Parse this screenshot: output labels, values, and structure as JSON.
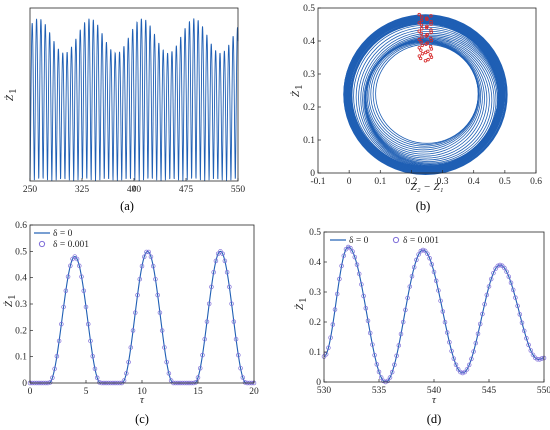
{
  "colors": {
    "line": "#1f5fb4",
    "marker": "#7f6fd9",
    "red": "#d62728",
    "axis": "#262626"
  },
  "chart_data": [
    {
      "panel": "(a)",
      "type": "line",
      "xlabel": "τ",
      "ylabel": "Ż1",
      "xlim": [
        250,
        550
      ],
      "ylim": [
        0,
        0.5
      ],
      "x_ticks": [
        "250",
        "325",
        "400",
        "475",
        "550"
      ],
      "y_ticks": [],
      "grid": false,
      "description_series": {
        "name": "",
        "oscillation_period": 6.3,
        "envelope_max_range": [
          0.37,
          0.47
        ],
        "minimum": 0.0,
        "envelope_min_slow_period": 75,
        "envelope_low_near": [
          275,
          350,
          430,
          505
        ]
      }
    },
    {
      "panel": "(b)",
      "type": "line",
      "xlabel": "Z2 − Z1",
      "ylabel": "Ż1",
      "xlim": [
        -0.1,
        0.6
      ],
      "ylim": [
        0,
        0.5
      ],
      "x_ticks": [
        "-0.1",
        "0",
        "0.1",
        "0.2",
        "0.3",
        "0.4",
        "0.5",
        "0.6"
      ],
      "y_ticks": [
        "0",
        "0.1",
        "0.2",
        "0.3",
        "0.4",
        "0.5"
      ],
      "grid": false,
      "series": [
        {
          "name": "",
          "kind": "orbit",
          "center": [
            0.25,
            0.23
          ],
          "outer_radius": [
            0.26,
            0.24
          ],
          "inner_radius": [
            0.165,
            0.15
          ]
        },
        {
          "name": "",
          "kind": "poincare",
          "points_x_range": [
            0.225,
            0.265
          ],
          "points_y_range": [
            0.34,
            0.48
          ]
        }
      ]
    },
    {
      "panel": "(c)",
      "type": "line",
      "xlabel": "τ",
      "ylabel": "Ż1",
      "xlim": [
        0,
        20
      ],
      "ylim": [
        0,
        0.6
      ],
      "x_ticks": [
        "0",
        "5",
        "10",
        "15",
        "20"
      ],
      "y_ticks": [
        "0",
        "0.1",
        "0.2",
        "0.3",
        "0.4",
        "0.5",
        "0.6"
      ],
      "grid": false,
      "legend": "top-left",
      "series": [
        {
          "name": "δ = 0",
          "style": "line",
          "peaks": [
            [
              4.0,
              0.48
            ],
            [
              10.5,
              0.5
            ],
            [
              17.0,
              0.5
            ]
          ],
          "half_width": 2.3
        },
        {
          "name": "δ = 0.001",
          "style": "marker",
          "peaks": [
            [
              4.0,
              0.48
            ],
            [
              10.5,
              0.5
            ],
            [
              17.0,
              0.5
            ]
          ],
          "half_width": 2.3
        }
      ]
    },
    {
      "panel": "(d)",
      "type": "line",
      "xlabel": "τ",
      "ylabel": "Ż1",
      "xlim": [
        530,
        550
      ],
      "ylim": [
        0,
        0.5
      ],
      "x_ticks": [
        "530",
        "535",
        "540",
        "545",
        "550"
      ],
      "y_ticks": [
        "0",
        "0.1",
        "0.2",
        "0.3",
        "0.4",
        "0.5"
      ],
      "grid": false,
      "legend": "top-left",
      "series": [
        {
          "name": "δ = 0",
          "style": "line",
          "maxima": [
            [
              532.2,
              0.45
            ],
            [
              539.0,
              0.44
            ],
            [
              546.0,
              0.39
            ]
          ],
          "minima": [
            [
              530.0,
              0.085
            ],
            [
              535.6,
              0.0
            ],
            [
              542.6,
              0.03
            ],
            [
              549.5,
              0.075
            ]
          ]
        },
        {
          "name": "δ = 0.001",
          "style": "marker"
        }
      ]
    }
  ],
  "panels": {
    "a": {
      "label": "(a)",
      "xlabel": "τ",
      "ylabel_main": "Ż",
      "ylabel_sub": "1"
    },
    "b": {
      "label": "(b)",
      "xlabel": "Z₂ − Z₁",
      "ylabel_main": "Ż",
      "ylabel_sub": "1"
    },
    "c": {
      "label": "(c)",
      "xlabel": "τ",
      "ylabel_main": "Ż",
      "ylabel_sub": "1",
      "legend": [
        "δ = 0",
        "δ = 0.001"
      ]
    },
    "d": {
      "label": "(d)",
      "xlabel": "τ",
      "ylabel_main": "Ż",
      "ylabel_sub": "1",
      "legend": [
        "δ = 0",
        "δ = 0.001"
      ]
    }
  }
}
